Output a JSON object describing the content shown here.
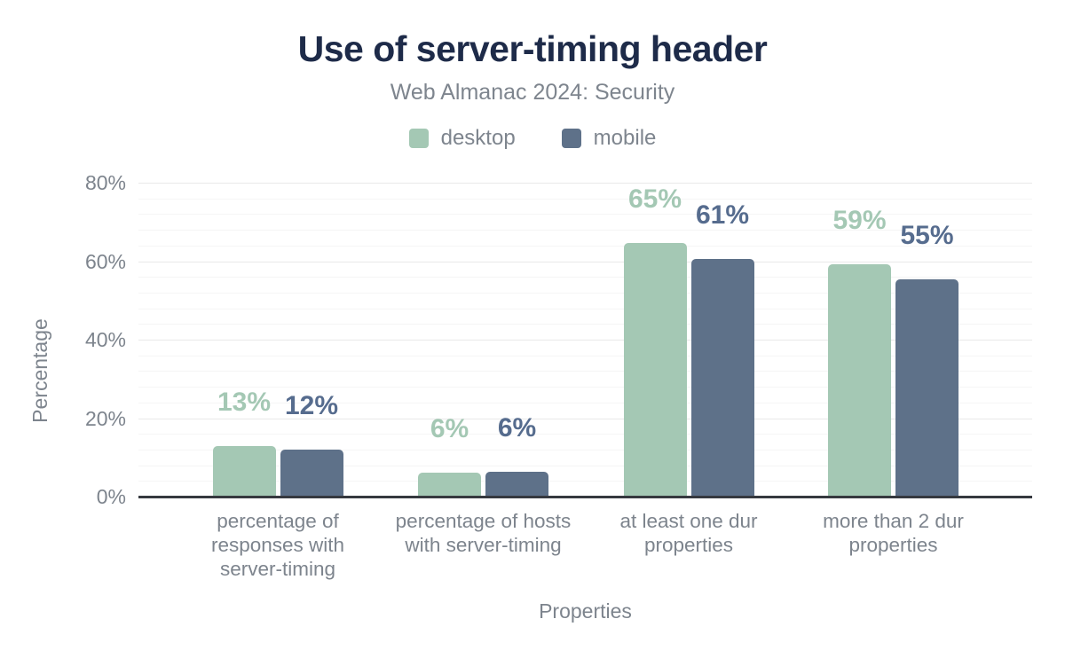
{
  "chart_data": {
    "type": "bar",
    "title": "Use of server-timing header",
    "subtitle": "Web Almanac 2024: Security",
    "xlabel": "Properties",
    "ylabel": "Percentage",
    "ylim": [
      0,
      80
    ],
    "ytick_step": 20,
    "yminor_step": 4,
    "ytick_suffix": "%",
    "grid": "horizontal",
    "legend_position": "top",
    "categories": [
      "percentage of responses with server-timing",
      "percentage of hosts with server-timing",
      "at least one dur properties",
      "more than 2 dur properties"
    ],
    "category_label_lines": [
      [
        "percentage of",
        "responses with",
        "server-timing"
      ],
      [
        "percentage of hosts",
        "with server-timing"
      ],
      [
        "at least one dur",
        "properties"
      ],
      [
        "more than 2 dur",
        "properties"
      ]
    ],
    "series": [
      {
        "name": "desktop",
        "color": "#a4c8b4",
        "label_color": "#a4c8b4",
        "values": [
          12.8,
          6.0,
          64.6,
          59.1
        ],
        "labels": [
          "13%",
          "6%",
          "65%",
          "59%"
        ]
      },
      {
        "name": "mobile",
        "color": "#5e7189",
        "label_color": "#566c8e",
        "values": [
          11.9,
          6.3,
          60.5,
          55.4
        ],
        "labels": [
          "12%",
          "6%",
          "61%",
          "55%"
        ]
      }
    ],
    "colors": {
      "title": "#1e2b49",
      "muted_text": "#7d848d",
      "axis_line": "#36393f",
      "grid_major": "#e9e9e9",
      "grid_minor": "#f5f5f5",
      "background": "#ffffff"
    }
  }
}
